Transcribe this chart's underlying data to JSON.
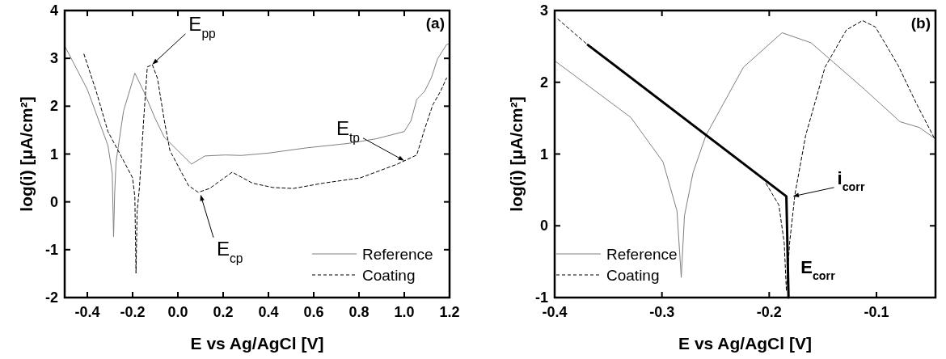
{
  "chart_data": [
    {
      "type": "line",
      "title": "(a)",
      "xlabel": "E vs Ag/AgCl [V]",
      "ylabel": "log(i) [μA/cm²]",
      "xlim": [
        -0.5,
        1.2
      ],
      "xticks": [
        -0.4,
        -0.2,
        {
          "value": 0,
          "label": "0.0"
        },
        0.2,
        0.4,
        0.6,
        0.8,
        {
          "value": 1,
          "label": "1.0"
        },
        1.2
      ],
      "ylim": [
        -2,
        4
      ],
      "yticks": [
        -2,
        -1,
        0,
        1,
        2,
        3,
        4
      ],
      "legend": "bottom right",
      "grid": false,
      "series": [
        {
          "name": "Reference",
          "color": "#7f7f7f",
          "line_style": "solid",
          "x": [
            -0.5,
            -0.4,
            -0.309,
            -0.29,
            -0.284,
            -0.279,
            -0.273,
            -0.24,
            -0.19,
            -0.15,
            -0.1,
            -0.06,
            0,
            0.06,
            0.12,
            0.21,
            0.28,
            0.4,
            0.57,
            0.75,
            0.877,
            1.0,
            1.03,
            1.055,
            1.09,
            1.12,
            1.147,
            1.187,
            1.2
          ],
          "values": [
            3.26,
            2.35,
            1.18,
            0.6,
            -0.73,
            0.2,
            0.84,
            1.9,
            2.69,
            2.3,
            1.74,
            1.35,
            1.07,
            0.79,
            0.96,
            0.98,
            0.97,
            1.02,
            1.13,
            1.22,
            1.32,
            1.47,
            1.7,
            2.14,
            2.31,
            2.6,
            2.99,
            3.29,
            3.3
          ]
        },
        {
          "name": "Coating",
          "color": "#000000",
          "line_style": "dashed",
          "x": [
            -0.415,
            -0.36,
            -0.309,
            -0.25,
            -0.2,
            -0.19,
            -0.185,
            -0.18,
            -0.17,
            -0.15,
            -0.135,
            -0.113,
            -0.09,
            -0.06,
            -0.035,
            0.047,
            0.09,
            0.14,
            0.24,
            0.33,
            0.42,
            0.51,
            0.64,
            0.805,
            0.97,
            1.055,
            1.09,
            1.126,
            1.16,
            1.187
          ],
          "values": [
            3.09,
            2.3,
            1.47,
            0.95,
            0.5,
            0.1,
            -1.49,
            -0.2,
            0.29,
            1.8,
            2.82,
            2.87,
            2.58,
            1.7,
            1.07,
            0.34,
            0.2,
            0.28,
            0.62,
            0.39,
            0.3,
            0.28,
            0.39,
            0.5,
            0.79,
            0.98,
            1.52,
            2.03,
            2.31,
            2.59
          ]
        }
      ],
      "annotations": [
        {
          "text": "E$_{pp}$",
          "x": -0.113,
          "y": 2.87
        },
        {
          "text": "E$_{cp}$",
          "x": 0.1,
          "y": 0.15
        },
        {
          "text": "E$_{tp}$",
          "x": 1.0,
          "y": 0.86
        }
      ]
    },
    {
      "type": "line",
      "title": "(b)",
      "xlabel": "E vs Ag/AgCl [V]",
      "ylabel": "log(i) [μA/cm²]",
      "xlim": [
        -0.4,
        -0.045
      ],
      "xticks": [
        -0.4,
        -0.3,
        -0.2,
        -0.1
      ],
      "ylim": [
        -1,
        3
      ],
      "yticks": [
        -1,
        0,
        1,
        2,
        3
      ],
      "legend": "bottom left",
      "grid": false,
      "series": [
        {
          "name": "Reference",
          "color": "#7f7f7f",
          "line_style": "solid",
          "x": [
            -0.4,
            -0.329,
            -0.299,
            -0.286,
            -0.282,
            -0.279,
            -0.271,
            -0.259,
            -0.224,
            -0.188,
            -0.161,
            -0.111,
            -0.078,
            -0.06,
            -0.045
          ],
          "values": [
            2.3,
            1.51,
            0.89,
            0.21,
            -0.72,
            0.14,
            0.74,
            1.26,
            2.21,
            2.69,
            2.55,
            1.9,
            1.45,
            1.37,
            1.21
          ]
        },
        {
          "name": "Coating",
          "color": "#000000",
          "line_style": "dashed",
          "x": [
            -0.397,
            -0.369,
            -0.3,
            -0.203,
            -0.191,
            -0.186,
            -0.184,
            -0.181,
            -0.176,
            -0.166,
            -0.148,
            -0.128,
            -0.113,
            -0.101,
            -0.08,
            -0.063,
            -0.045
          ],
          "values": [
            2.88,
            2.52,
            null,
            0.59,
            0.29,
            -0.24,
            -0.91,
            -0.24,
            0.44,
            1.26,
            2.21,
            2.73,
            2.86,
            2.77,
            2.24,
            1.71,
            1.19
          ]
        },
        {
          "color": "#000000",
          "line_style": "solid",
          "x": [
            -0.369,
            -0.184,
            -0.182
          ],
          "values": [
            2.52,
            0.41,
            -1
          ]
        }
      ],
      "annotations": [
        {
          "text": "i$_{corr}$",
          "x": -0.178,
          "y": 0.41
        },
        {
          "text": "E$_{corr}$",
          "x": -0.182,
          "y": -0.55
        }
      ]
    }
  ]
}
